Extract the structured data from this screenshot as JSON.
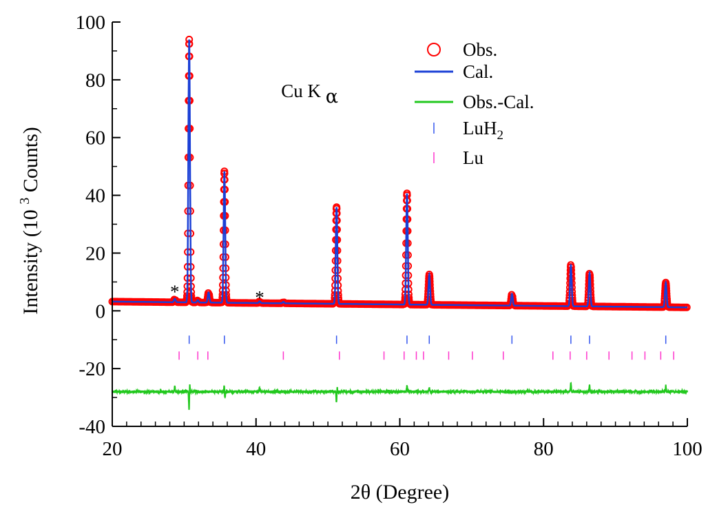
{
  "chart_data": {
    "type": "line",
    "xlabel": "2θ (Degree)",
    "ylabel": "Intensity (10",
    "ylabel_sup": "3",
    "ylabel_end": " Counts)",
    "xlim": [
      20,
      100
    ],
    "ylim": [
      -40,
      100
    ],
    "x_ticks": [
      20,
      40,
      60,
      80,
      100
    ],
    "x_tick_labels": [
      "20",
      "40",
      "60",
      "80",
      "100"
    ],
    "y_ticks": [
      -40,
      -20,
      0,
      20,
      40,
      60,
      80,
      100
    ],
    "y_tick_labels": [
      "-40",
      "-20",
      "0",
      "20",
      "40",
      "60",
      "80",
      "100"
    ],
    "grid": false,
    "legend_position": "top-center",
    "annotation": {
      "text": "Cu K",
      "sub": "α",
      "x": 43.5,
      "y": 74
    },
    "star_markers": [
      {
        "text": "*",
        "x": 28.7,
        "y": 4.5
      },
      {
        "text": "*",
        "x": 40.5,
        "y": 2.5
      }
    ],
    "background": {
      "start": 3.2,
      "end": 1.2
    },
    "peaks": [
      {
        "x": 28.7,
        "height": 1.2
      },
      {
        "x": 30.7,
        "height": 91.0
      },
      {
        "x": 31.9,
        "height": 0.8
      },
      {
        "x": 33.4,
        "height": 3.5
      },
      {
        "x": 35.6,
        "height": 45.5
      },
      {
        "x": 40.5,
        "height": 0.6
      },
      {
        "x": 43.8,
        "height": 0.5
      },
      {
        "x": 51.2,
        "height": 33.5
      },
      {
        "x": 61.0,
        "height": 38.5
      },
      {
        "x": 64.1,
        "height": 10.5
      },
      {
        "x": 75.6,
        "height": 4.0
      },
      {
        "x": 83.8,
        "height": 14.5
      },
      {
        "x": 86.4,
        "height": 11.5
      },
      {
        "x": 97.0,
        "height": 8.5
      }
    ],
    "difference_baseline": -28,
    "difference_spikes": [
      {
        "x": 28.7,
        "amp": 2
      },
      {
        "x": 30.7,
        "amp": -9
      },
      {
        "x": 30.75,
        "amp": 6
      },
      {
        "x": 35.6,
        "amp": 4
      },
      {
        "x": 35.65,
        "amp": -4
      },
      {
        "x": 40.5,
        "amp": 1.5
      },
      {
        "x": 51.2,
        "amp": -5
      },
      {
        "x": 51.25,
        "amp": 3
      },
      {
        "x": 61.0,
        "amp": 2
      },
      {
        "x": 64.1,
        "amp": 1.5
      },
      {
        "x": 83.8,
        "amp": 3
      },
      {
        "x": 86.4,
        "amp": 2
      },
      {
        "x": 97.0,
        "amp": 2
      }
    ],
    "series": [
      {
        "name": "Obs.",
        "style": "open-circle",
        "color": "#ff0000"
      },
      {
        "name": "Cal.",
        "style": "line",
        "color": "#1a3fd6"
      },
      {
        "name": "Obs.-Cal.",
        "style": "line",
        "color": "#22c81e"
      },
      {
        "name": "LuH",
        "name_sub": "2",
        "style": "tick",
        "color": "#3355ee",
        "y": -10,
        "positions": [
          30.7,
          35.6,
          51.2,
          61.0,
          64.1,
          75.6,
          83.8,
          86.4,
          97.0
        ]
      },
      {
        "name": "Lu",
        "style": "tick",
        "color": "#ff33cc",
        "y": -15.5,
        "positions": [
          29.3,
          31.9,
          33.3,
          43.8,
          51.6,
          57.8,
          60.6,
          62.3,
          63.3,
          66.8,
          70.1,
          74.4,
          81.3,
          83.7,
          86.0,
          89.1,
          92.3,
          94.1,
          96.3,
          98.1
        ]
      }
    ]
  }
}
